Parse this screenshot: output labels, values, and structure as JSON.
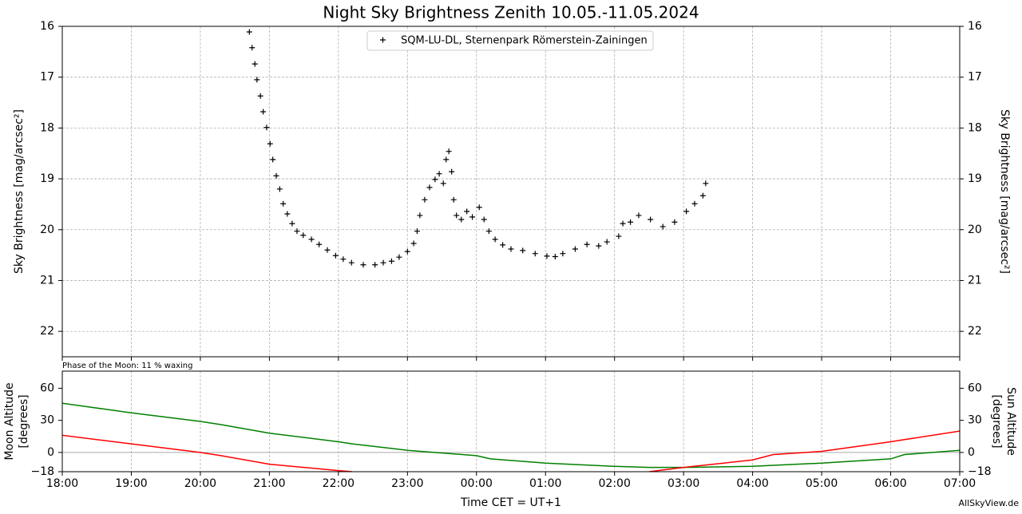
{
  "chart_data": [
    {
      "type": "scatter",
      "title": "Night Sky Brightness Zenith 10.05.-11.05.2024",
      "ylabel": "Sky Brightness [mag/arcsec²]",
      "legend": "upper center",
      "grid": true,
      "xlim": [
        18,
        31
      ],
      "xticks": [
        18,
        19,
        20,
        21,
        22,
        23,
        24,
        25,
        26,
        27,
        28,
        29,
        30,
        31
      ],
      "ylim": [
        22.5,
        16
      ],
      "yticks": [
        16,
        17,
        18,
        19,
        20,
        21,
        22
      ],
      "x": [
        20.71,
        20.75,
        20.79,
        20.82,
        20.87,
        20.91,
        20.96,
        21.01,
        21.05,
        21.1,
        21.15,
        21.2,
        21.26,
        21.33,
        21.4,
        21.49,
        21.61,
        21.72,
        21.84,
        21.96,
        22.07,
        22.19,
        22.36,
        22.53,
        22.65,
        22.77,
        22.88,
        23.0,
        23.09,
        23.14,
        23.18,
        23.25,
        23.32,
        23.4,
        23.46,
        23.52,
        23.56,
        23.6,
        23.64,
        23.67,
        23.71,
        23.78,
        23.86,
        23.94,
        24.04,
        24.11,
        24.18,
        24.27,
        24.38,
        24.5,
        24.67,
        24.85,
        25.02,
        25.14,
        25.25,
        25.43,
        25.6,
        25.77,
        25.89,
        26.06,
        26.12,
        26.23,
        26.35,
        26.52,
        26.7,
        26.87,
        27.04,
        27.16,
        27.28,
        27.32
      ],
      "series": [
        {
          "name": "SQM-LU-DL, Sternenpark Römerstein-Zainingen",
          "color": "#000000",
          "values": [
            16.11,
            16.42,
            16.74,
            17.05,
            17.37,
            17.68,
            17.99,
            18.31,
            18.62,
            18.94,
            19.2,
            19.49,
            19.69,
            19.88,
            20.03,
            20.11,
            20.19,
            20.29,
            20.4,
            20.51,
            20.58,
            20.65,
            20.69,
            20.69,
            20.65,
            20.62,
            20.54,
            20.43,
            20.27,
            20.03,
            19.72,
            19.41,
            19.17,
            19.01,
            18.9,
            19.09,
            18.62,
            18.46,
            18.86,
            19.41,
            19.72,
            19.8,
            19.64,
            19.75,
            19.56,
            19.8,
            20.03,
            20.19,
            20.3,
            20.38,
            20.41,
            20.47,
            20.52,
            20.53,
            20.47,
            20.38,
            20.29,
            20.32,
            20.24,
            20.13,
            19.88,
            19.85,
            19.72,
            19.8,
            19.94,
            19.85,
            19.64,
            19.49,
            19.33,
            19.09
          ]
        }
      ]
    },
    {
      "type": "line",
      "annotation": "Phase of the Moon: 11 % waxing",
      "xlabel": "Time CET = UT+1",
      "credit": "AllSkyView.de",
      "ylabel": [
        "Moon Altitude",
        "[degrees]"
      ],
      "y2label": [
        "Sun Altitude",
        "[degrees]"
      ],
      "grid": true,
      "xlim": [
        18,
        31
      ],
      "xticks": [
        {
          "value": 18,
          "label": "18:00"
        },
        {
          "value": 19,
          "label": "19:00"
        },
        {
          "value": 20,
          "label": "20:00"
        },
        {
          "value": 21,
          "label": "21:00"
        },
        {
          "value": 22,
          "label": "22:00"
        },
        {
          "value": 23,
          "label": "23:00"
        },
        {
          "value": 24,
          "label": "00:00"
        },
        {
          "value": 25,
          "label": "01:00"
        },
        {
          "value": 26,
          "label": "02:00"
        },
        {
          "value": 27,
          "label": "03:00"
        },
        {
          "value": 28,
          "label": "04:00"
        },
        {
          "value": 29,
          "label": "05:00"
        },
        {
          "value": 30,
          "label": "06:00"
        },
        {
          "value": 31,
          "label": "07:00"
        }
      ],
      "ylim": [
        -18,
        76
      ],
      "yticks": [
        {
          "value": -18,
          "label": "−18"
        },
        0,
        30,
        60
      ],
      "y2lim": [
        -18,
        76
      ],
      "y2ticks": [
        {
          "value": -18,
          "label": "−18"
        },
        0,
        30,
        60
      ],
      "x": [
        18,
        19,
        20,
        20.3,
        21,
        22,
        22.2,
        23,
        24,
        24.2,
        25,
        26,
        26.5,
        27,
        28,
        28.3,
        29,
        30,
        30.2,
        31
      ],
      "series": [
        {
          "name": "Moon Altitude",
          "color": "#008000",
          "values": [
            46,
            37,
            29,
            26,
            18,
            10,
            8,
            2,
            -3,
            -6,
            -10,
            -13,
            -14,
            -14,
            -13,
            -12,
            -10,
            -6,
            -2,
            2
          ]
        },
        {
          "name": "Sun Altitude",
          "color": "#ff0000",
          "axis": "y2",
          "values": [
            16,
            8,
            0,
            -3,
            -11,
            -17,
            -18,
            null,
            null,
            null,
            null,
            null,
            -18,
            -14,
            -7,
            -2,
            1,
            10,
            12,
            20
          ]
        }
      ]
    }
  ]
}
